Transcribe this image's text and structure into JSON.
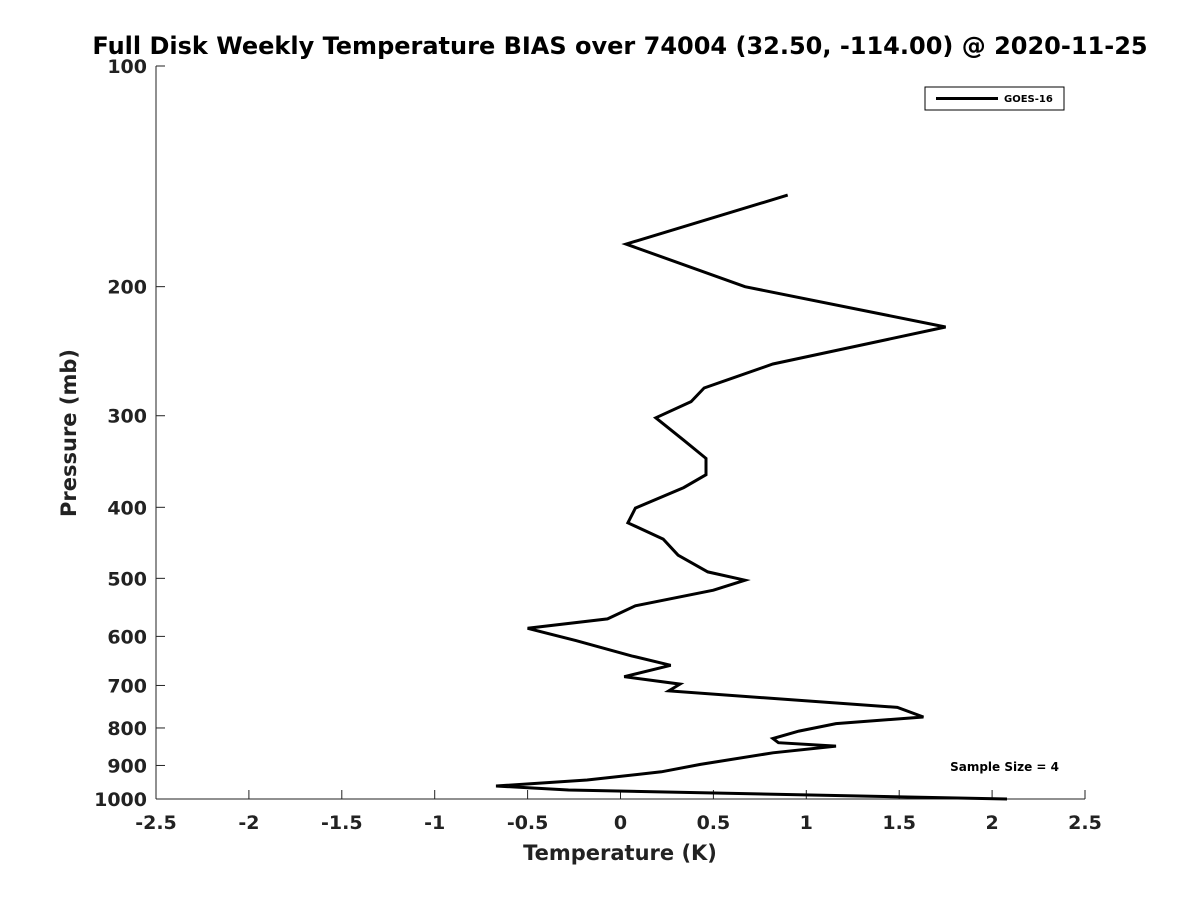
{
  "chart_data": {
    "type": "line",
    "title": "Full Disk Weekly Temperature BIAS over 74004 (32.50, -114.00) @ 2020-11-25",
    "xlabel": "Temperature (K)",
    "ylabel": "Pressure (mb)",
    "xlim": [
      -2.5,
      2.5
    ],
    "ylim": [
      100,
      1000
    ],
    "y_scale": "log",
    "y_reversed": true,
    "x_ticks": [
      -2.5,
      -2,
      -1.5,
      -1,
      -0.5,
      0,
      0.5,
      1,
      1.5,
      2,
      2.5
    ],
    "x_tick_labels": [
      "-2.5",
      "-2",
      "-1.5",
      "-1",
      "-0.5",
      "0",
      "0.5",
      "1",
      "1.5",
      "2",
      "2.5"
    ],
    "y_ticks": [
      100,
      200,
      300,
      400,
      500,
      600,
      700,
      800,
      900,
      1000
    ],
    "y_tick_labels": [
      "100",
      "200",
      "300",
      "400",
      "500",
      "600",
      "700",
      "800",
      "900",
      "1000"
    ],
    "grid": false,
    "legend_position": "top-right",
    "annotation": "Sample Size = 4",
    "series": [
      {
        "name": "GOES-16",
        "color": "#000000",
        "points": [
          {
            "x": 0.9,
            "y": 150
          },
          {
            "x": 0.03,
            "y": 175
          },
          {
            "x": 0.67,
            "y": 200
          },
          {
            "x": 1.75,
            "y": 227
          },
          {
            "x": 0.82,
            "y": 255
          },
          {
            "x": 0.45,
            "y": 275
          },
          {
            "x": 0.38,
            "y": 287
          },
          {
            "x": 0.19,
            "y": 302
          },
          {
            "x": 0.34,
            "y": 324
          },
          {
            "x": 0.46,
            "y": 343
          },
          {
            "x": 0.46,
            "y": 361
          },
          {
            "x": 0.34,
            "y": 376
          },
          {
            "x": 0.08,
            "y": 401
          },
          {
            "x": 0.04,
            "y": 420
          },
          {
            "x": 0.23,
            "y": 442
          },
          {
            "x": 0.31,
            "y": 465
          },
          {
            "x": 0.47,
            "y": 490
          },
          {
            "x": 0.67,
            "y": 503
          },
          {
            "x": 0.5,
            "y": 519
          },
          {
            "x": 0.08,
            "y": 545
          },
          {
            "x": -0.07,
            "y": 568
          },
          {
            "x": -0.5,
            "y": 585
          },
          {
            "x": -0.24,
            "y": 608
          },
          {
            "x": 0.06,
            "y": 638
          },
          {
            "x": 0.27,
            "y": 657
          },
          {
            "x": 0.02,
            "y": 681
          },
          {
            "x": 0.32,
            "y": 697
          },
          {
            "x": 0.26,
            "y": 712
          },
          {
            "x": 1.49,
            "y": 750
          },
          {
            "x": 1.63,
            "y": 773
          },
          {
            "x": 1.16,
            "y": 789
          },
          {
            "x": 0.96,
            "y": 808
          },
          {
            "x": 0.82,
            "y": 827
          },
          {
            "x": 0.85,
            "y": 838
          },
          {
            "x": 1.16,
            "y": 847
          },
          {
            "x": 0.82,
            "y": 865
          },
          {
            "x": 0.43,
            "y": 897
          },
          {
            "x": 0.22,
            "y": 918
          },
          {
            "x": -0.18,
            "y": 942
          },
          {
            "x": -0.67,
            "y": 960
          },
          {
            "x": -0.28,
            "y": 972
          },
          {
            "x": 2.08,
            "y": 1000
          }
        ]
      }
    ]
  }
}
